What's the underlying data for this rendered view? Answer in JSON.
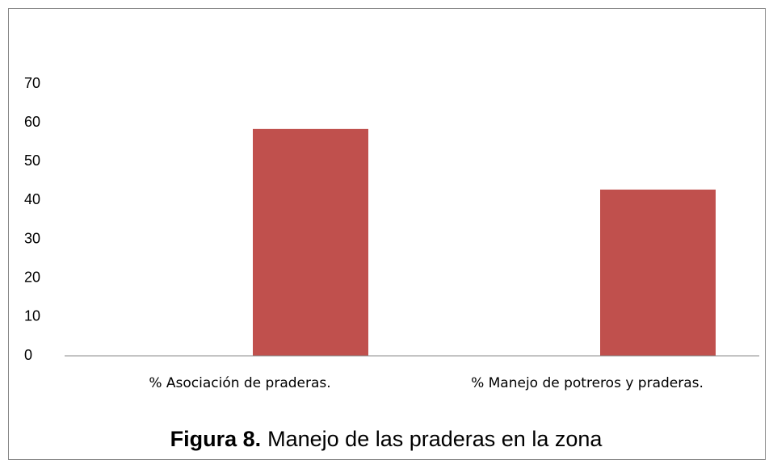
{
  "chart_data": {
    "type": "bar",
    "categories": [
      "% Asociación de praderas.",
      "% Manejo de potreros y praderas."
    ],
    "values": [
      58.4,
      42.8
    ],
    "color": "#c0504d",
    "ylim": [
      0,
      70
    ],
    "yticks": [
      0,
      10,
      20,
      30,
      40,
      50,
      60,
      70
    ],
    "grid": false,
    "caption_label": "Figura 8.",
    "caption_text": "Manejo de las praderas en la zona"
  }
}
